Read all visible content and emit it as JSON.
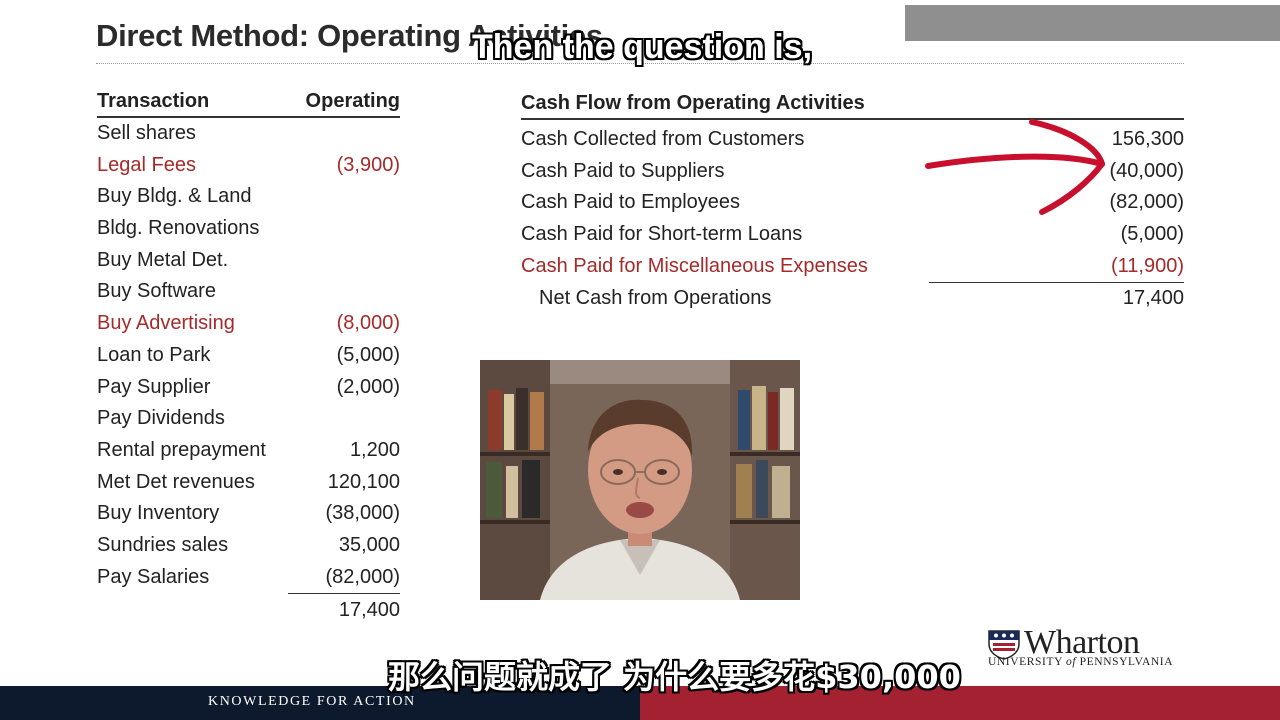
{
  "slide": {
    "title": "Direct Method: Operating Activities"
  },
  "captions": {
    "english": "Then the question is,",
    "chinese": "那么问题就成了 为什么要多花$30,000"
  },
  "left_table": {
    "header": {
      "transaction": "Transaction",
      "operating": "Operating"
    },
    "rows": [
      {
        "label": "Sell shares",
        "amount": ""
      },
      {
        "label": "Legal Fees",
        "amount": "(3,900)",
        "highlight": true
      },
      {
        "label": "Buy Bldg. & Land",
        "amount": ""
      },
      {
        "label": "Bldg. Renovations",
        "amount": ""
      },
      {
        "label": "Buy Metal Det.",
        "amount": ""
      },
      {
        "label": "Buy Software",
        "amount": ""
      },
      {
        "label": "Buy Advertising",
        "amount": "(8,000)",
        "highlight": true
      },
      {
        "label": "Loan to Park",
        "amount": "(5,000)"
      },
      {
        "label": "Pay Supplier",
        "amount": "(2,000)"
      },
      {
        "label": "Pay Dividends",
        "amount": ""
      },
      {
        "label": "Rental prepayment",
        "amount": "1,200"
      },
      {
        "label": "Met Det revenues",
        "amount": "120,100"
      },
      {
        "label": "Buy Inventory",
        "amount": "(38,000)"
      },
      {
        "label": "Sundries sales",
        "amount": "35,000"
      },
      {
        "label": "Pay Salaries",
        "amount": "(82,000)"
      }
    ],
    "total": "17,400"
  },
  "right_table": {
    "header": "Cash Flow from Operating Activities",
    "rows": [
      {
        "label": "Cash Collected from Customers",
        "amount": "156,300"
      },
      {
        "label": "Cash Paid to Suppliers",
        "amount": "(40,000)"
      },
      {
        "label": "Cash Paid to Employees",
        "amount": "(82,000)"
      },
      {
        "label": "Cash Paid for Short-term Loans",
        "amount": "(5,000)"
      },
      {
        "label": "Cash Paid for Miscellaneous Expenses",
        "amount": "(11,900)",
        "highlight": true
      }
    ],
    "total": {
      "label": "Net Cash from Operations",
      "amount": "17,400"
    }
  },
  "logo": {
    "name": "Wharton",
    "sub_prefix": "UNIVERSITY ",
    "sub_of": "of",
    "sub_suffix": " PENNSYLVANIA"
  },
  "footer": {
    "tagline": "KNOWLEDGE FOR ACTION"
  },
  "colors": {
    "highlight_red": "#a52a2a",
    "annotation_red": "#c8102e",
    "footer_navy": "#0d1a2e",
    "footer_red": "#a32131"
  }
}
